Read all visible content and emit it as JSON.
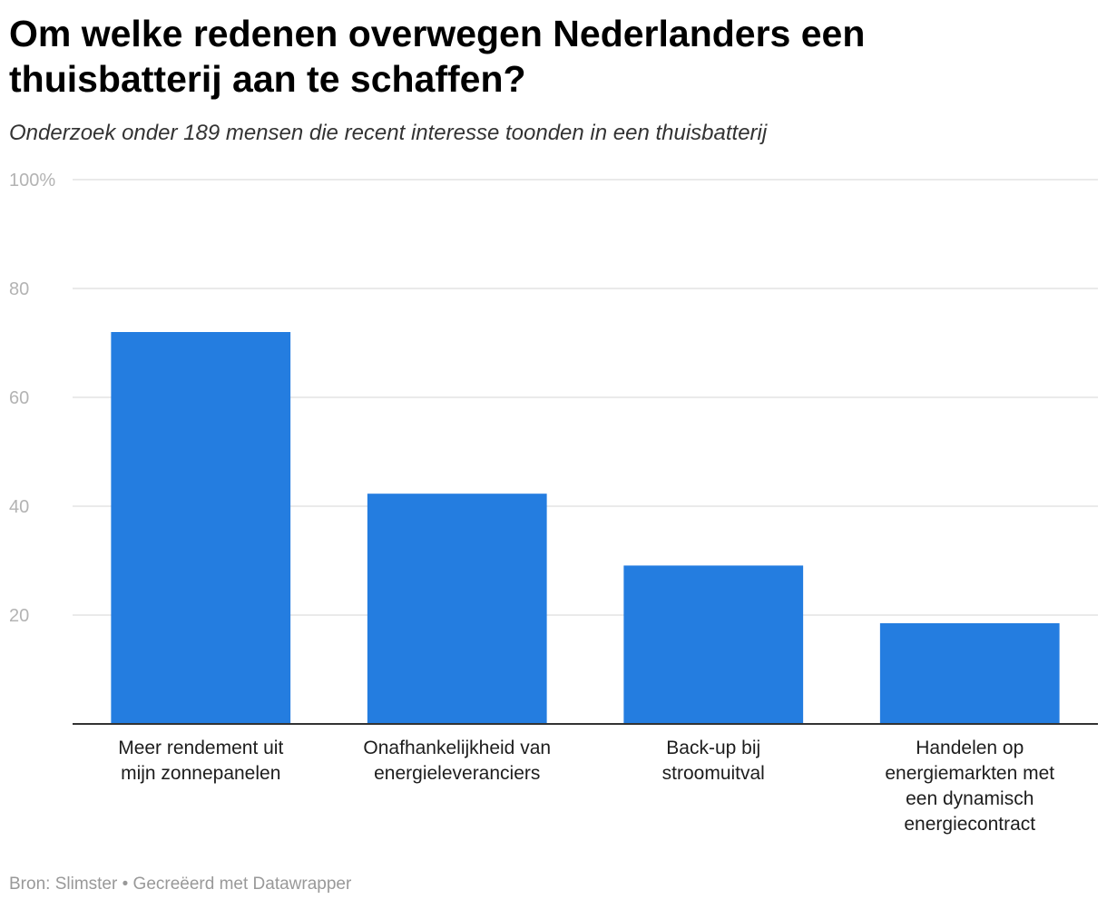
{
  "header": {
    "title": "Om welke redenen overwegen Nederlanders een thuisbatterij aan te schaffen?",
    "subtitle": "Onderzoek onder 189 mensen die recent interesse toonden in een thuisbatterij"
  },
  "footer": {
    "source_label": "Bron:",
    "source": "Slimster",
    "separator": "•",
    "credit": "Gecreëerd met Datawrapper"
  },
  "colors": {
    "bar": "#247de0",
    "grid": "#e4e4e4",
    "axis": "#333333"
  },
  "chart_data": {
    "type": "bar",
    "title": "Om welke redenen overwegen Nederlanders een thuisbatterij aan te schaffen?",
    "subtitle": "Onderzoek onder 189 mensen die recent interesse toonden in een thuisbatterij",
    "xlabel": "",
    "ylabel": "",
    "ylim": [
      0,
      100
    ],
    "yticks": [
      20,
      40,
      60,
      80,
      100
    ],
    "ytick_labels": [
      "20",
      "40",
      "60",
      "80",
      "100%"
    ],
    "grid": true,
    "categories": [
      [
        "Meer rendement uit",
        "mijn zonnepanelen"
      ],
      [
        "Onafhankelijkheid van",
        "energieleveranciers"
      ],
      [
        "Back-up bij",
        "stroomuitval"
      ],
      [
        "Handelen op",
        "energiemarkten met",
        "een dynamisch",
        "energiecontract"
      ]
    ],
    "values": [
      72,
      42.3,
      29.1,
      18.5
    ]
  }
}
